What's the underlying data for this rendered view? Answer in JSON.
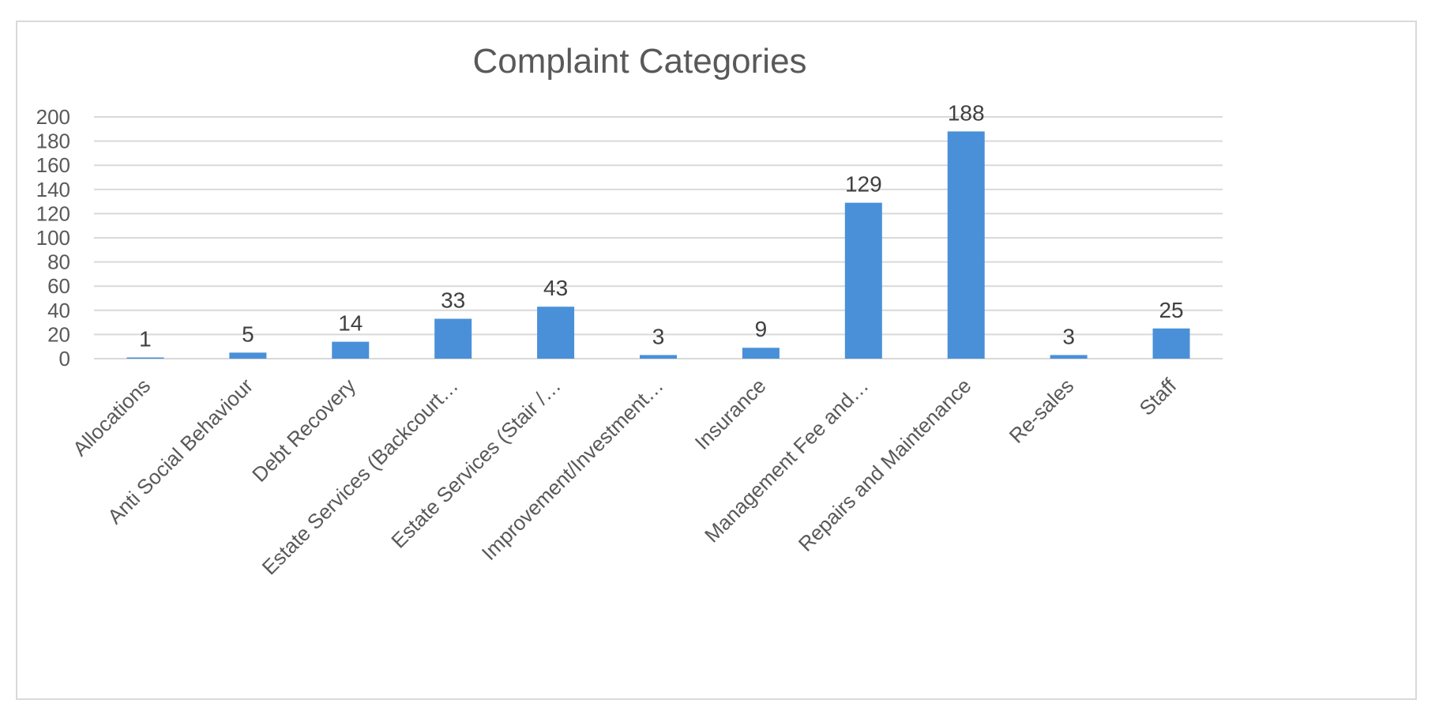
{
  "chart_data": {
    "type": "bar",
    "title": "Complaint Categories",
    "xlabel": "",
    "ylabel": "",
    "categories": [
      "Allocations",
      "Anti Social Behaviour",
      "Debt Recovery",
      "Estate Services (Backcourt…",
      "Estate Services (Stair /…",
      "Improvement/Investment…",
      "Insurance",
      "Management Fee and…",
      "Repairs and Maintenance",
      "Re-sales",
      "Staff"
    ],
    "values": [
      1,
      5,
      14,
      33,
      43,
      3,
      9,
      129,
      188,
      3,
      25
    ],
    "ylim": [
      0,
      200
    ],
    "yticks": [
      0,
      20,
      40,
      60,
      80,
      100,
      120,
      140,
      160,
      180,
      200
    ],
    "grid": true,
    "legend": "none",
    "data_labels": true,
    "bar_color": "#4a90d9",
    "grid_color": "#d9d9d9"
  }
}
